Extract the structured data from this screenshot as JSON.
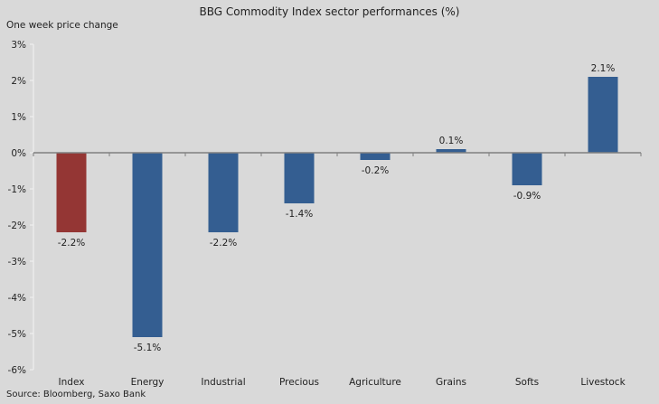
{
  "chart_data": {
    "type": "bar",
    "title": "BBG  Commodity  Index  sector performances  (%)",
    "subtitle": "One week price change",
    "source": "Source: Bloomberg, Saxo Bank",
    "xlabel": "",
    "ylabel": "One week price change",
    "categories": [
      "Index",
      "Energy",
      "Industrial",
      "Precious",
      "Agriculture",
      "Grains",
      "Softs",
      "Livestock"
    ],
    "values": [
      -2.2,
      -5.1,
      -2.2,
      -1.4,
      -0.2,
      0.1,
      -0.9,
      2.1
    ],
    "data_labels": [
      "-2.2%",
      "-5.1%",
      "-2.2%",
      "-1.4%",
      "-0.2%",
      "0.1%",
      "-0.9%",
      "2.1%"
    ],
    "ylim": [
      -6,
      3
    ],
    "yticks": [
      3,
      2,
      1,
      0,
      -1,
      -2,
      -3,
      -4,
      -5,
      -6
    ],
    "ytick_labels": [
      "3%",
      "2%",
      "1%",
      "0%",
      "-1%",
      "-2%",
      "-3%",
      "-4%",
      "-5%",
      "-6%"
    ],
    "grid": false,
    "legend": "none",
    "colors": {
      "highlight": "#943634",
      "default": "#345e91",
      "background": "#d9d9d9",
      "axis": "#808080",
      "y_axis": "#f2f2f2"
    },
    "highlight_index": 0
  }
}
